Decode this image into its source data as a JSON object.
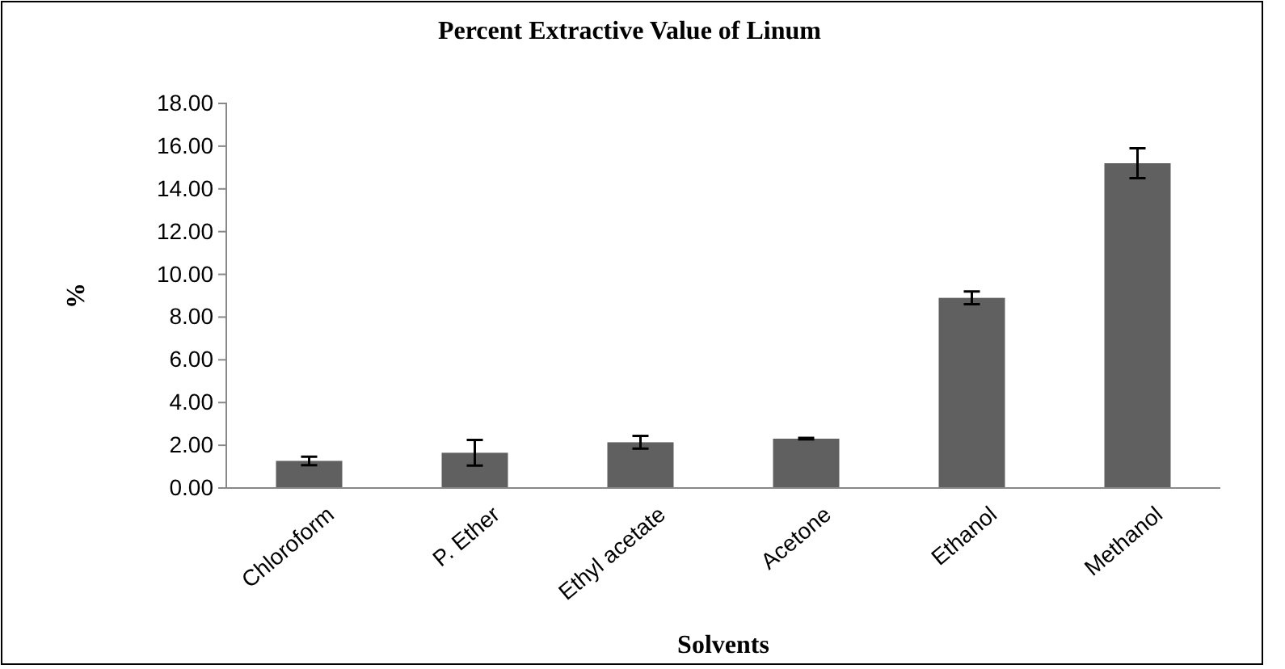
{
  "chart_data": {
    "type": "bar",
    "title": "Percent Extractive Value of Linum",
    "xlabel": "Solvents",
    "ylabel": "%",
    "categories": [
      "Chloroform",
      "P. Ether",
      "Ethyl acetate",
      "Acetone",
      "Ethanol",
      "Methanol"
    ],
    "values": [
      1.27,
      1.65,
      2.14,
      2.31,
      8.9,
      15.2
    ],
    "errors": [
      0.2,
      0.6,
      0.3,
      0.03,
      0.3,
      0.7
    ],
    "color": "#606060",
    "ylim": [
      0,
      18
    ],
    "yticks": [
      {
        "value": 0,
        "label": "0.00"
      },
      {
        "value": 2,
        "label": "2.00"
      },
      {
        "value": 4,
        "label": "4.00"
      },
      {
        "value": 6,
        "label": "6.00"
      },
      {
        "value": 8,
        "label": "8.00"
      },
      {
        "value": 10,
        "label": "10.00"
      },
      {
        "value": 12,
        "label": "12.00"
      },
      {
        "value": 14,
        "label": "14.00"
      },
      {
        "value": 16,
        "label": "16.00"
      },
      {
        "value": 18,
        "label": "18.00"
      }
    ],
    "grid": false
  }
}
